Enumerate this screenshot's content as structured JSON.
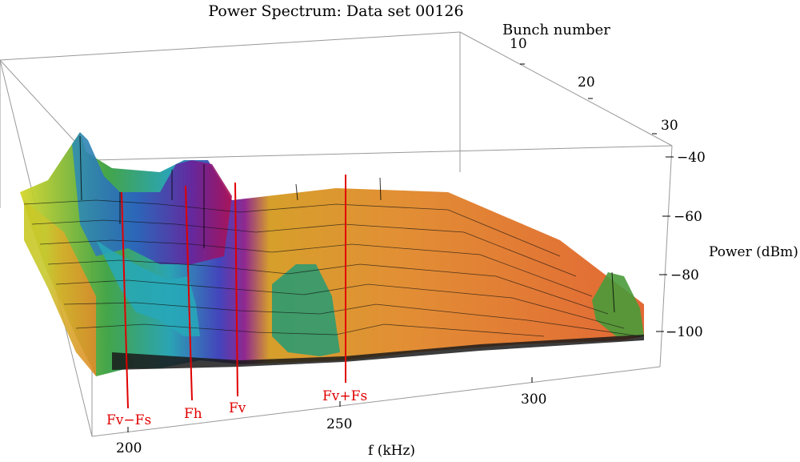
{
  "chart_data": {
    "type": "surface3d",
    "title": "Power Spectrum: Data set 00126",
    "xlabel": "f (kHz)",
    "ylabel": "Bunch number",
    "zlabel": "Power (dBm)",
    "x_ticks": [
      200,
      250,
      300
    ],
    "y_ticks": [
      10,
      20,
      30
    ],
    "z_ticks": [
      -40,
      -60,
      -80,
      -100
    ],
    "x_range": [
      195,
      340
    ],
    "y_range": [
      1,
      30
    ],
    "z_range": [
      -110,
      -40
    ],
    "x_tick_labels": [
      "200",
      "250",
      "300"
    ],
    "y_tick_labels": [
      "10",
      "20",
      "30"
    ],
    "z_tick_labels": [
      "−40",
      "−60",
      "−80",
      "−100"
    ],
    "markers": [
      {
        "label": "Fv−Fs",
        "f": 200
      },
      {
        "label": "Fh",
        "f": 217
      },
      {
        "label": "Fv",
        "f": 229
      },
      {
        "label": "Fv+Fs",
        "f": 252
      }
    ],
    "peaks": [
      {
        "f": 200,
        "bunch": 1,
        "power": -55
      },
      {
        "f": 212,
        "bunch": 30,
        "power": -45
      },
      {
        "f": 217,
        "bunch": 28,
        "power": -46
      },
      {
        "f": 229,
        "bunch": 5,
        "power": -78
      },
      {
        "f": 330,
        "bunch": 2,
        "power": -82
      }
    ],
    "colormap": [
      "#d0d020",
      "#2fa040",
      "#1fa0b0",
      "#3050c0",
      "#7020a0",
      "#c01040",
      "#e07020",
      "#e0a030"
    ],
    "marker_color": "#e00000"
  }
}
